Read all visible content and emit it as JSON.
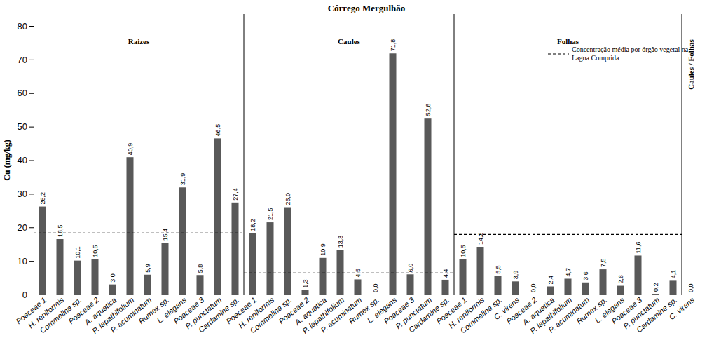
{
  "chart_data": {
    "type": "bar",
    "title": "Córrego Mergulhão",
    "y_label": "Cu (mg/kg)",
    "ylim": [
      0,
      80
    ],
    "yticks": [
      0,
      10,
      20,
      30,
      40,
      50,
      60,
      70,
      80
    ],
    "color": "#595959",
    "data_labels": true,
    "reference_label": "Concentração média por órgão vegetal na Lagoa Comprida",
    "groups": [
      {
        "name": "Raizes",
        "categories": [
          "Poaceae 1",
          "H. reniformis",
          "Commelina sp.",
          "Poaceae 2",
          "A. aquatica",
          "P. lapathifolium",
          "P. acuminatum",
          "Rumex sp.",
          "L. elegans",
          "Poaceae 3",
          "P. punctatum",
          "Cardamine sp."
        ],
        "values": [
          26.2,
          16.5,
          10.1,
          10.5,
          3.0,
          40.9,
          5.9,
          15.4,
          31.9,
          5.8,
          46.5,
          27.4
        ],
        "value_labels": [
          "26,2",
          "16,5",
          "10,1",
          "10,5",
          "3,0",
          "40,9",
          "5,9",
          "15,4",
          "31,9",
          "5,8",
          "46,5",
          "27,4"
        ],
        "reference": 18.3
      },
      {
        "name": "Caules",
        "categories": [
          "Poaceae 1",
          "H. reniformis",
          "Commelina sp.",
          "Poaceae 2",
          "A. aquatica",
          "P. lapathifolium",
          "P. acuminatum",
          "Rumex sp.",
          "L. elegans",
          "Poaceae 3",
          "P. punctatum",
          "Cardamine sp."
        ],
        "values": [
          18.2,
          21.5,
          26.0,
          1.3,
          10.9,
          13.3,
          4.5,
          0.0,
          71.8,
          6.0,
          52.6,
          4.4
        ],
        "value_labels": [
          "18,2",
          "21,5",
          "26,0",
          "1,3",
          "10,9",
          "13,3",
          "4,5",
          "0,0",
          "71,8",
          "6,0",
          "52,6",
          "4,4"
        ],
        "reference": 6.4
      },
      {
        "name": "Folhas",
        "categories": [
          "Poaceae 1",
          "H. reniformis",
          "Commelina sp.",
          "C. virens",
          "Poaceae 2",
          "A. aquatica",
          "P. lapathifolium",
          "P. acuminatum",
          "Rumex sp.",
          "L. elegans",
          "Poaceae 3",
          "P. punctatum",
          "Cardamine sp."
        ],
        "values": [
          10.5,
          14.2,
          5.5,
          3.9,
          0.0,
          2.4,
          4.7,
          3.6,
          7.5,
          2.6,
          11.6,
          0.2,
          4.1
        ],
        "value_labels": [
          "10,5",
          "14,2",
          "5,5",
          "3,9",
          "0,0",
          "2,4",
          "4,7",
          "3,6",
          "7,5",
          "2,6",
          "11,6",
          "0,2",
          "4,1"
        ],
        "reference": 17.9
      },
      {
        "name": "Caules / Folhas",
        "categories": [
          "C. virens"
        ],
        "values": [
          0.0
        ],
        "value_labels": [
          "0,0"
        ]
      }
    ]
  }
}
